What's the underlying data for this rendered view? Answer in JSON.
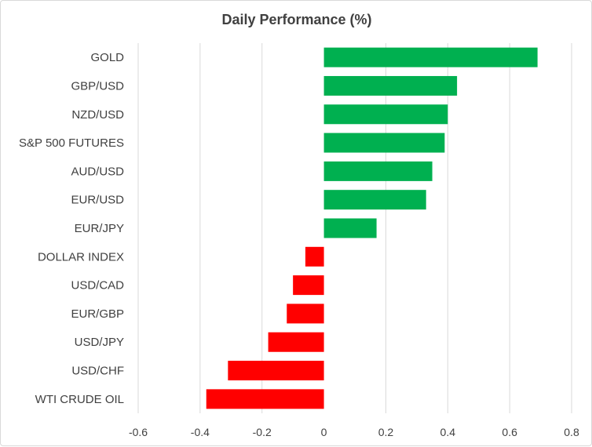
{
  "chart_data": {
    "type": "bar",
    "orientation": "horizontal",
    "title": "Daily Performance (%)",
    "xlabel": "",
    "ylabel": "",
    "categories": [
      "GOLD",
      "GBP/USD",
      "NZD/USD",
      "S&P 500 FUTURES",
      "AUD/USD",
      "EUR/USD",
      "EUR/JPY",
      "DOLLAR INDEX",
      "USD/CAD",
      "EUR/GBP",
      "USD/JPY",
      "USD/CHF",
      "WTI CRUDE OIL"
    ],
    "values": [
      0.69,
      0.43,
      0.4,
      0.39,
      0.35,
      0.33,
      0.17,
      -0.06,
      -0.1,
      -0.12,
      -0.18,
      -0.31,
      -0.38
    ],
    "xlim": [
      -0.6,
      0.8
    ],
    "xticks": [
      -0.6,
      -0.4,
      -0.2,
      0,
      0.2,
      0.4,
      0.6,
      0.8
    ],
    "xtick_labels": [
      "-0.6",
      "-0.4",
      "-0.2",
      "0",
      "0.2",
      "0.4",
      "0.6",
      "0.8"
    ],
    "grid": "vertical",
    "legend": "none",
    "colors": {
      "positive": "#00b050",
      "negative": "#ff0000",
      "grid": "#d9d9d9",
      "text": "#404040"
    }
  }
}
